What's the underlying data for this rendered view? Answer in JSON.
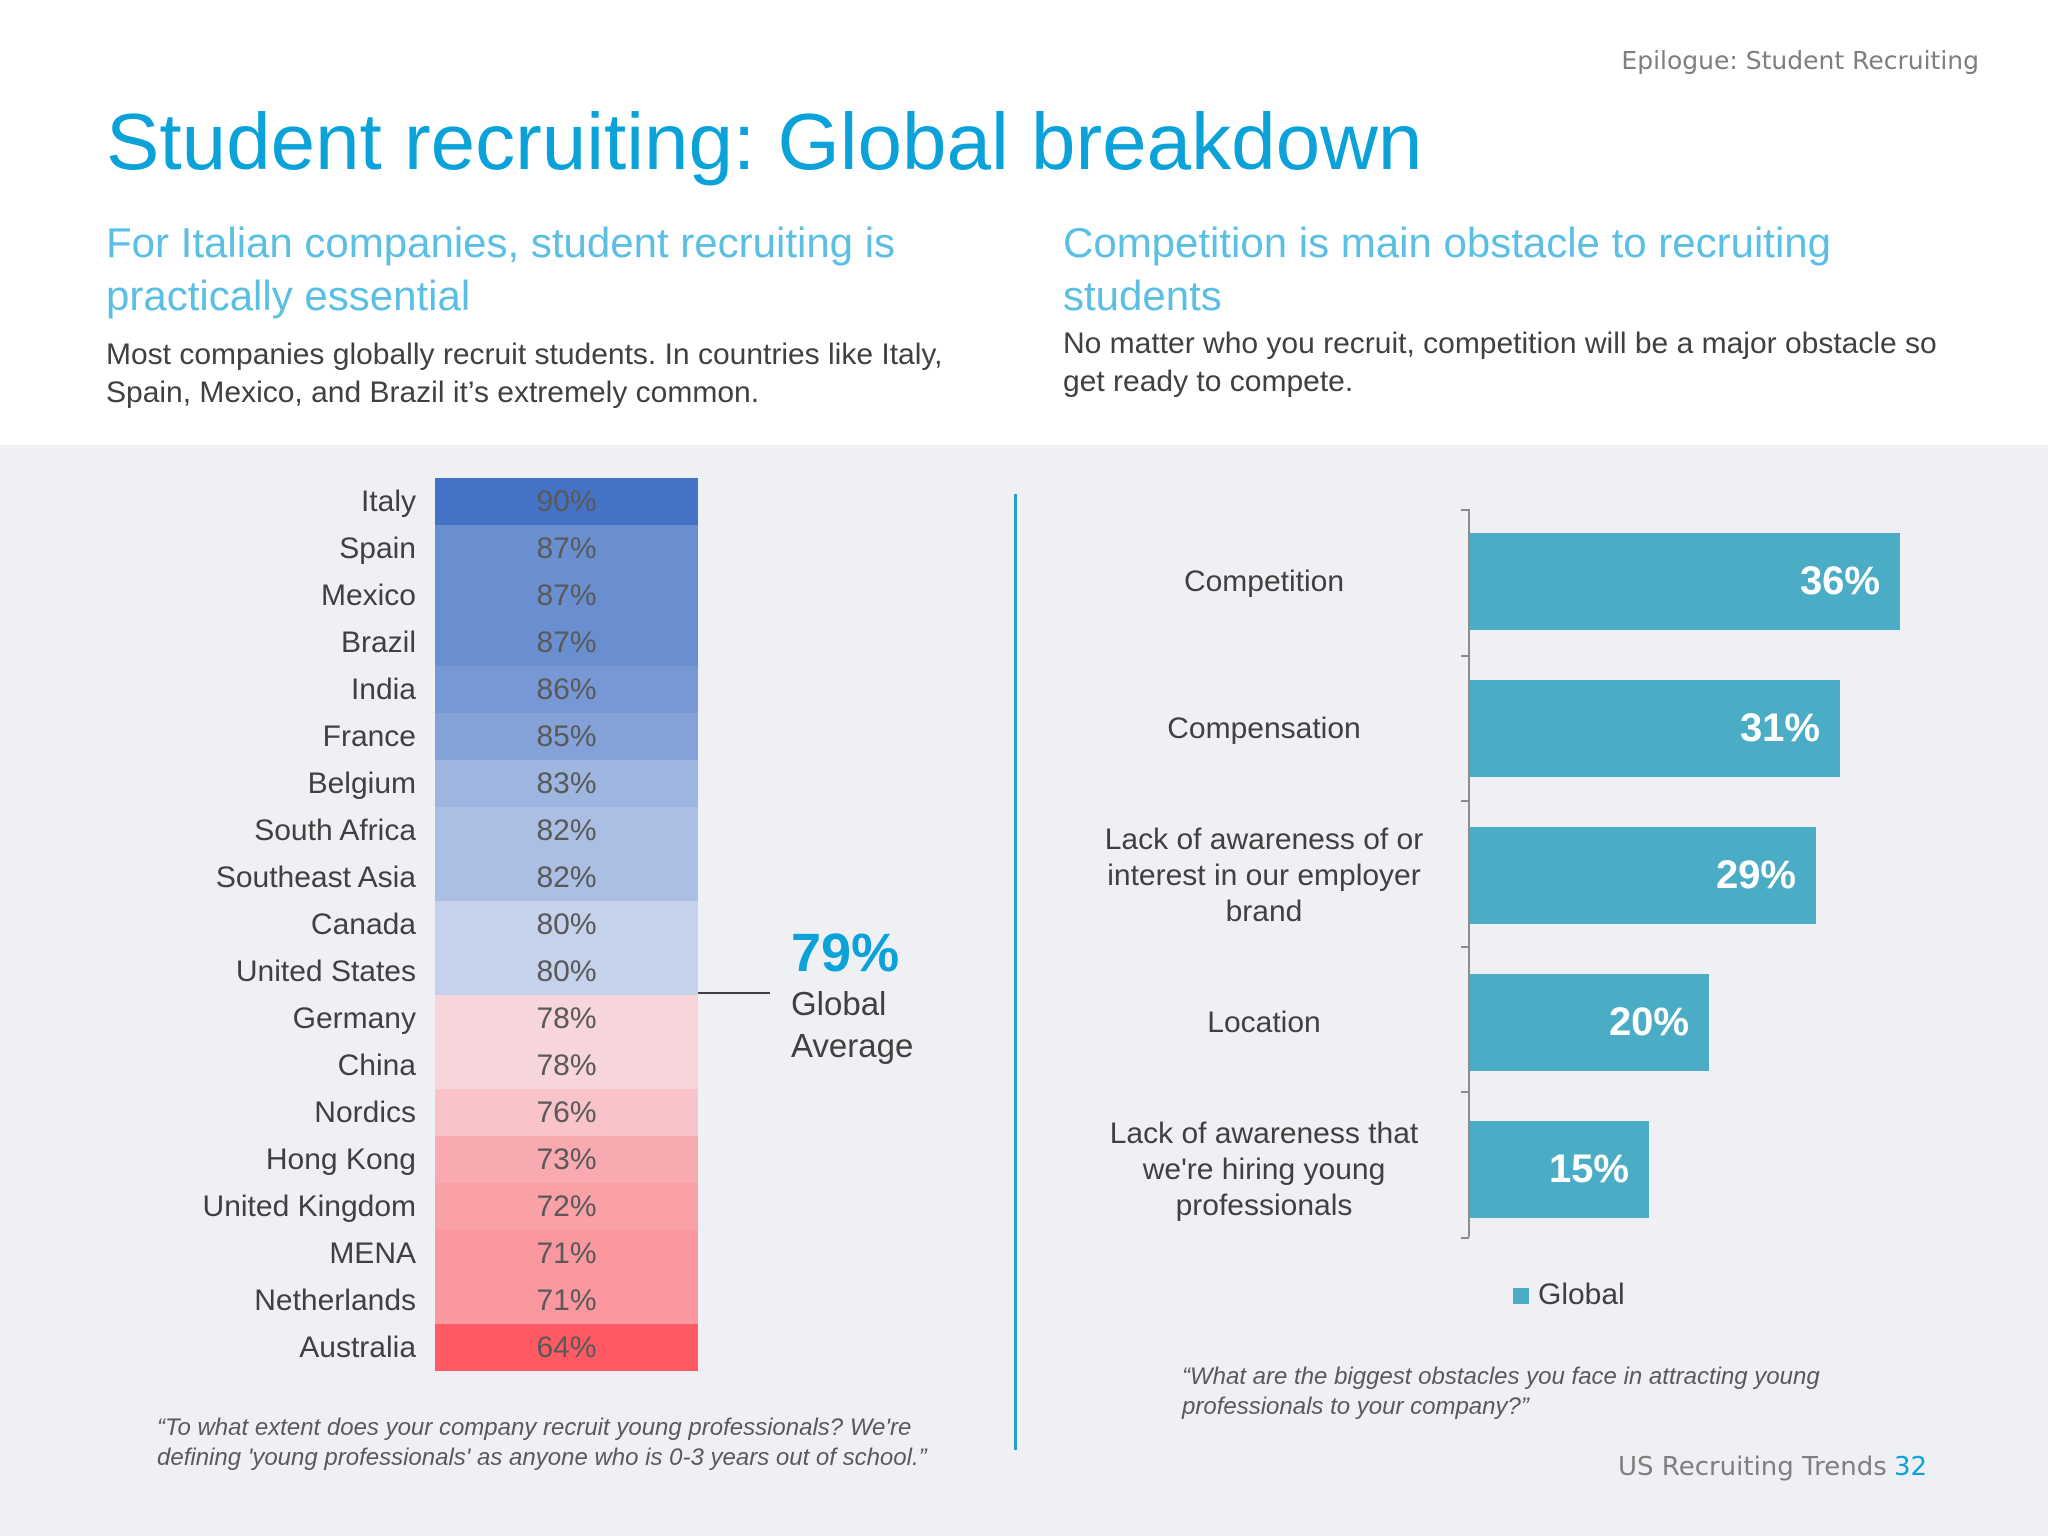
{
  "header": {
    "section_label": "Epilogue: Student Recruiting",
    "title": "Student recruiting: Global breakdown"
  },
  "left": {
    "heading": "For Italian companies, student recruiting is practically essential",
    "body": "Most companies globally recruit students. In countries like Italy, Spain, Mexico, and Brazil it’s extremely common.",
    "average_value": "79%",
    "average_label": "Global Average",
    "question": "“To what extent does your company recruit young professionals? We're defining 'young professionals' as anyone who is 0-3 years out of school.”"
  },
  "right": {
    "heading": "Competition is main obstacle to recruiting students",
    "body": "No matter who you recruit, competition will be a major obstacle so get ready to compete.",
    "legend_label": "Global",
    "question": "“What are the biggest obstacles you face in attracting young professionals to your company?”"
  },
  "footer": {
    "brand": "US Recruiting Trends",
    "page": "32"
  },
  "chart_data": [
    {
      "type": "heatmap",
      "categories": [
        "Italy",
        "Spain",
        "Mexico",
        "Brazil",
        "India",
        "France",
        "Belgium",
        "South Africa",
        "Southeast Asia",
        "Canada",
        "United States",
        "Germany",
        "China",
        "Nordics",
        "Hong Kong",
        "United Kingdom",
        "MENA",
        "Netherlands",
        "Australia"
      ],
      "values": [
        90,
        87,
        87,
        87,
        86,
        85,
        83,
        82,
        82,
        80,
        80,
        78,
        78,
        76,
        73,
        72,
        71,
        71,
        64
      ],
      "labels": [
        "90%",
        "87%",
        "87%",
        "87%",
        "86%",
        "85%",
        "83%",
        "82%",
        "82%",
        "80%",
        "80%",
        "78%",
        "78%",
        "76%",
        "73%",
        "72%",
        "71%",
        "71%",
        "64%"
      ],
      "reference": {
        "label": "Global Average",
        "value": 79
      },
      "colors": {
        "high": "#4472c4",
        "mid": "#f4f6fa",
        "low": "#ff5a63"
      }
    },
    {
      "type": "bar",
      "orientation": "horizontal",
      "categories": [
        "Competition",
        "Compensation",
        "Lack of awareness of or interest in our employer brand",
        "Location",
        "Lack of awareness that we're hiring young professionals"
      ],
      "series": [
        {
          "name": "Global",
          "values": [
            36,
            31,
            29,
            20,
            15
          ],
          "color": "#4bacc6"
        }
      ],
      "labels": [
        "36%",
        "31%",
        "29%",
        "20%",
        "15%"
      ],
      "xlim": [
        0,
        40
      ],
      "legend": "bottom"
    }
  ]
}
